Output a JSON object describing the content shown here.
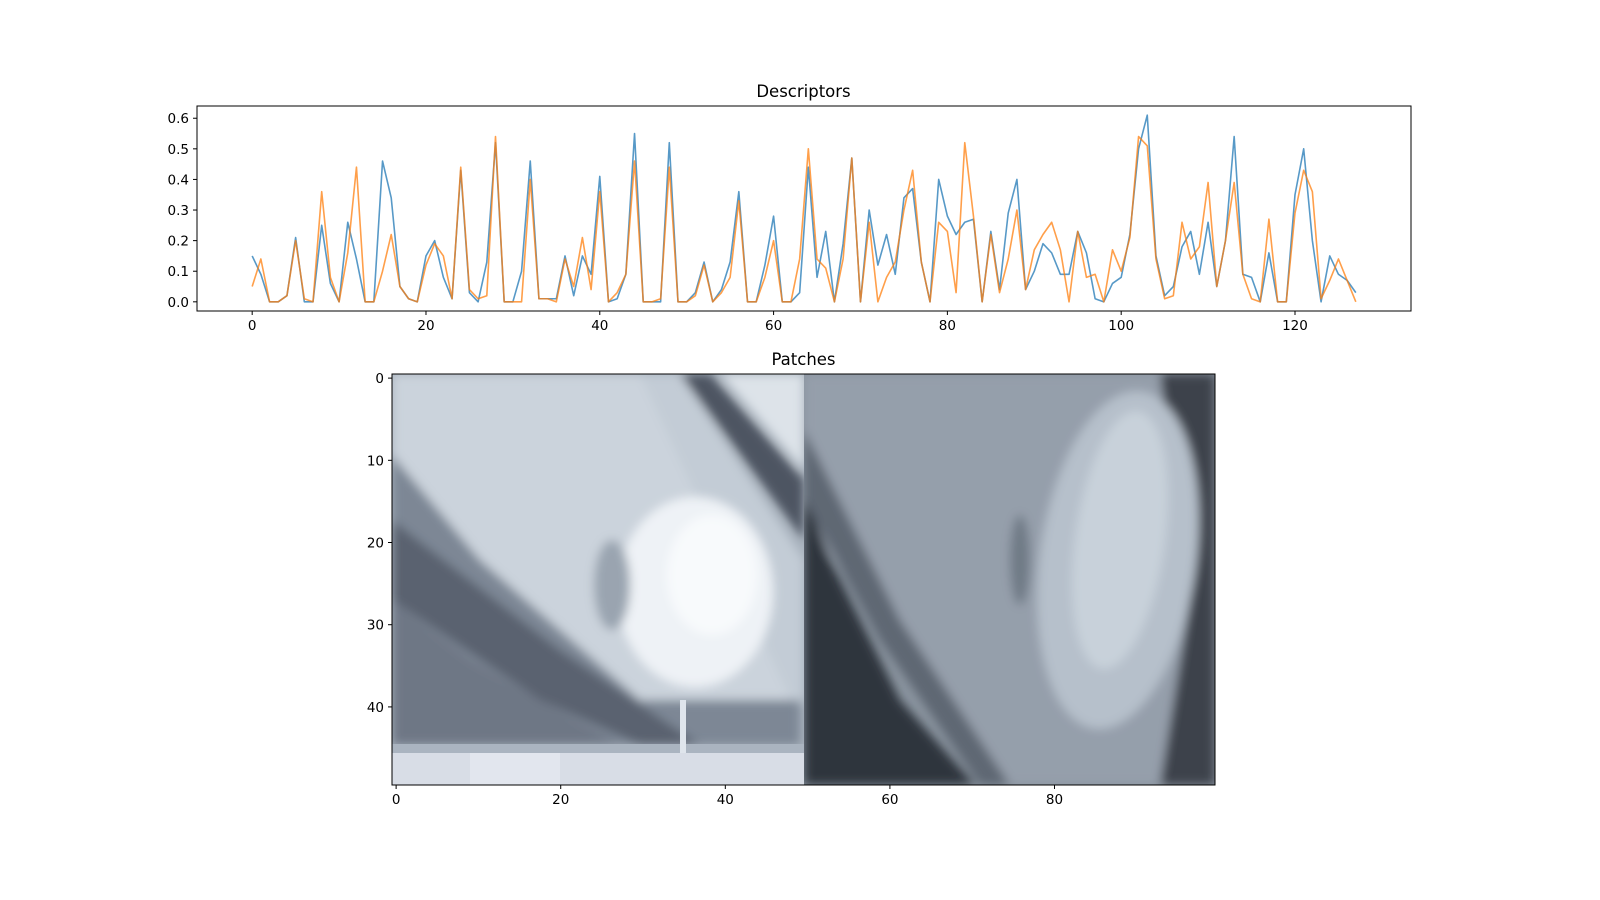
{
  "chart_data": [
    {
      "type": "line",
      "title": "Descriptors",
      "xlabel": "",
      "ylabel": "",
      "xlim": [
        -6.35,
        133.35
      ],
      "ylim": [
        -0.03,
        0.64
      ],
      "xticks": [
        0,
        20,
        40,
        60,
        80,
        100,
        120
      ],
      "yticks": [
        0.0,
        0.1,
        0.2,
        0.3,
        0.4,
        0.5,
        0.6
      ],
      "ytick_labels": [
        "0.0",
        "0.1",
        "0.2",
        "0.3",
        "0.4",
        "0.5",
        "0.6"
      ],
      "grid": false,
      "series": [
        {
          "color": "#1f77b4",
          "values": [
            0.15,
            0.09,
            0.0,
            0.0,
            0.02,
            0.21,
            0.0,
            0.0,
            0.25,
            0.06,
            0.0,
            0.26,
            0.14,
            0.0,
            0.0,
            0.46,
            0.34,
            0.05,
            0.01,
            0.0,
            0.15,
            0.2,
            0.08,
            0.01,
            0.43,
            0.03,
            0.0,
            0.13,
            0.52,
            0.0,
            0.0,
            0.1,
            0.46,
            0.01,
            0.01,
            0.01,
            0.15,
            0.02,
            0.15,
            0.09,
            0.41,
            0.0,
            0.01,
            0.09,
            0.55,
            0.0,
            0.0,
            0.0,
            0.52,
            0.0,
            0.0,
            0.03,
            0.13,
            0.0,
            0.04,
            0.13,
            0.36,
            0.0,
            0.0,
            0.12,
            0.28,
            0.0,
            0.0,
            0.03,
            0.44,
            0.08,
            0.23,
            0.0,
            0.19,
            0.47,
            0.0,
            0.3,
            0.12,
            0.22,
            0.09,
            0.34,
            0.37,
            0.13,
            0.0,
            0.4,
            0.28,
            0.22,
            0.26,
            0.27,
            0.0,
            0.23,
            0.04,
            0.29,
            0.4,
            0.04,
            0.1,
            0.19,
            0.16,
            0.09,
            0.09,
            0.23,
            0.16,
            0.01,
            0.0,
            0.06,
            0.08,
            0.22,
            0.5,
            0.61,
            0.15,
            0.02,
            0.05,
            0.18,
            0.23,
            0.09,
            0.26,
            0.05,
            0.2,
            0.54,
            0.09,
            0.08,
            0.0,
            0.16,
            0.0,
            0.0,
            0.35,
            0.5,
            0.2,
            0.0,
            0.15,
            0.09,
            0.07,
            0.03
          ]
        },
        {
          "color": "#ff7f0e",
          "values": [
            0.05,
            0.14,
            0.0,
            0.0,
            0.02,
            0.2,
            0.01,
            0.0,
            0.36,
            0.08,
            0.0,
            0.16,
            0.44,
            0.0,
            0.0,
            0.1,
            0.22,
            0.05,
            0.01,
            0.0,
            0.12,
            0.19,
            0.15,
            0.01,
            0.44,
            0.04,
            0.01,
            0.02,
            0.54,
            0.0,
            0.0,
            0.0,
            0.4,
            0.01,
            0.01,
            0.0,
            0.14,
            0.05,
            0.21,
            0.04,
            0.36,
            0.0,
            0.03,
            0.09,
            0.46,
            0.0,
            0.0,
            0.01,
            0.44,
            0.0,
            0.0,
            0.02,
            0.12,
            0.0,
            0.03,
            0.08,
            0.33,
            0.0,
            0.0,
            0.08,
            0.2,
            0.0,
            0.0,
            0.14,
            0.5,
            0.14,
            0.11,
            0.0,
            0.14,
            0.47,
            0.0,
            0.26,
            0.0,
            0.08,
            0.13,
            0.3,
            0.43,
            0.13,
            0.0,
            0.26,
            0.23,
            0.03,
            0.52,
            0.28,
            0.0,
            0.22,
            0.03,
            0.14,
            0.3,
            0.04,
            0.17,
            0.22,
            0.26,
            0.17,
            0.0,
            0.23,
            0.08,
            0.09,
            0.0,
            0.17,
            0.1,
            0.21,
            0.54,
            0.51,
            0.14,
            0.01,
            0.02,
            0.26,
            0.14,
            0.18,
            0.39,
            0.05,
            0.2,
            0.39,
            0.09,
            0.01,
            0.0,
            0.27,
            0.0,
            0.0,
            0.29,
            0.43,
            0.36,
            0.01,
            0.07,
            0.14,
            0.07,
            0.0
          ]
        }
      ]
    },
    {
      "type": "heatmap",
      "title": "Patches",
      "xticks": [
        0,
        20,
        40,
        60,
        80
      ],
      "yticks": [
        0,
        10,
        20,
        30,
        40
      ],
      "width": 100,
      "height": 50,
      "colormap": "bone",
      "grid": false
    }
  ]
}
